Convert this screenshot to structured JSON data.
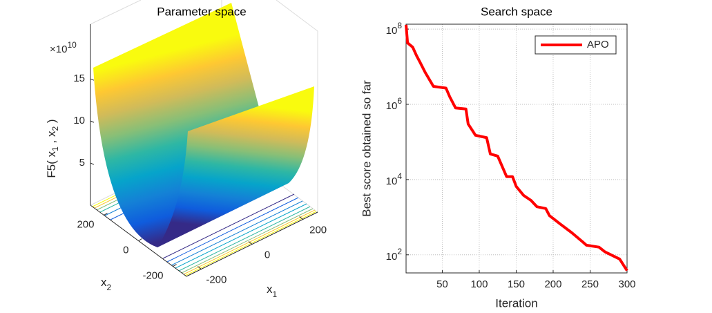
{
  "chart_data": [
    {
      "type": "surface",
      "title": "Parameter space",
      "zlabel": [
        "F5( x",
        "1",
        " , x",
        "2",
        " )"
      ],
      "xlabel": [
        "x",
        "1"
      ],
      "ylabel": [
        "x",
        "2"
      ],
      "xlim": [
        -258,
        258
      ],
      "xticks": [
        -200,
        0,
        200
      ],
      "ylim": [
        -278,
        278
      ],
      "yticks": [
        -200,
        0,
        200
      ],
      "zlim": [
        0,
        21.5
      ],
      "zticks": [
        5,
        10,
        15
      ],
      "z_multiplier": [
        "×10",
        "10"
      ],
      "colormap": [
        "#352a87",
        "#0f5cdd",
        "#1481d6",
        "#06a4ca",
        "#2eb7a4",
        "#87bf77",
        "#d1bb59",
        "#fec832",
        "#f9fb0e"
      ]
    },
    {
      "type": "line",
      "title": "Search space",
      "xlabel": "Iteration",
      "ylabel": "Best score obtained so far",
      "log_y": true,
      "grid": true,
      "legend": "northeast",
      "xlim": [
        1,
        300
      ],
      "xticks": [
        50,
        100,
        150,
        200,
        250,
        300
      ],
      "ylim": [
        33,
        135000000
      ],
      "yticks": [
        {
          "value": 100,
          "label": "10",
          "exponent": "2"
        },
        {
          "value": 10000,
          "label": "10",
          "exponent": "4"
        },
        {
          "value": 1000000,
          "label": "10",
          "exponent": "6"
        },
        {
          "value": 100000000,
          "label": "10",
          "exponent": "8"
        }
      ],
      "series": [
        {
          "name": "APO",
          "color": "#ff0000",
          "x": [
            1,
            3,
            10,
            15,
            20,
            27,
            38,
            55,
            60,
            68,
            82,
            85,
            95,
            110,
            115,
            125,
            137,
            145,
            150,
            160,
            170,
            178,
            190,
            195,
            210,
            225,
            240,
            245,
            262,
            270,
            290,
            300
          ],
          "values": [
            130000000,
            43000000,
            33000000,
            20000000,
            13000000,
            7000000,
            3000000,
            2700000,
            1600000,
            800000,
            750000,
            300000,
            150000,
            130000,
            48000,
            42000,
            12000,
            12000,
            6600,
            3800,
            2800,
            1900,
            1700,
            1100,
            650,
            390,
            220,
            180,
            160,
            120,
            77,
            38
          ]
        }
      ]
    }
  ]
}
